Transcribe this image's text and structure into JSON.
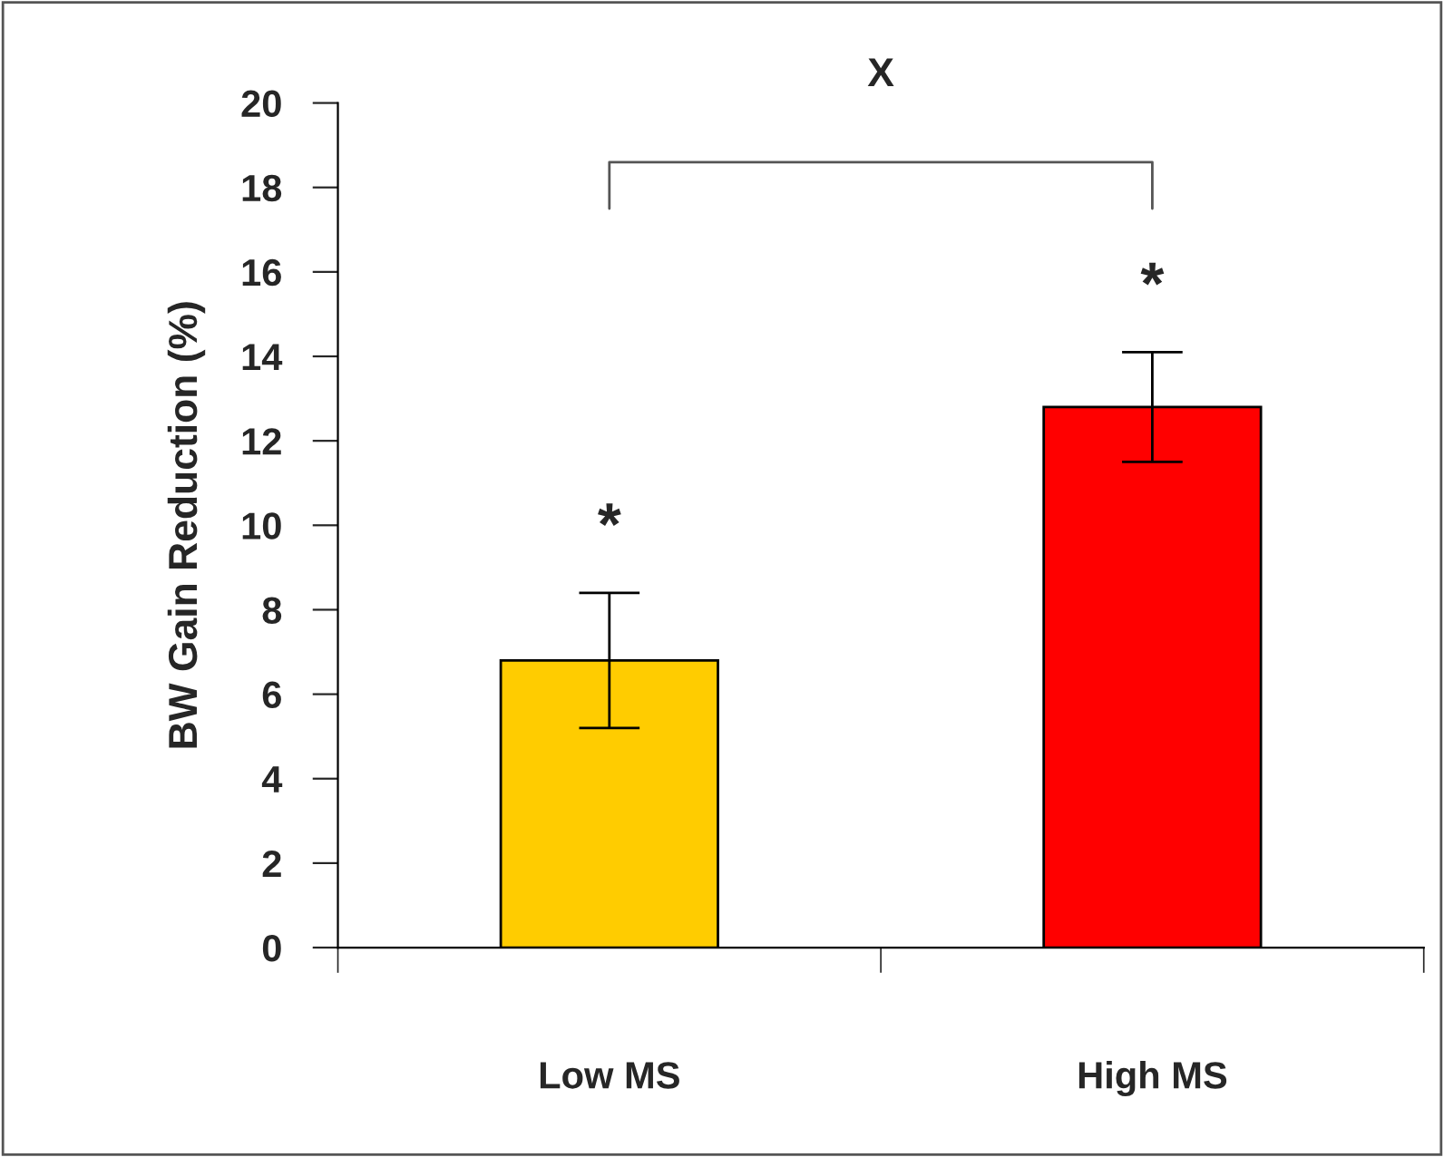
{
  "chart_data": {
    "type": "bar",
    "ylabel": "BW Gain Reduction (%)",
    "categories": [
      "Low MS",
      "High MS"
    ],
    "values": [
      6.8,
      12.8
    ],
    "errors": [
      1.6,
      1.3
    ],
    "colors": [
      "#ffcc00",
      "#ff0000"
    ],
    "ylim": [
      0,
      20
    ],
    "yticks": [
      0,
      2,
      4,
      6,
      8,
      10,
      12,
      14,
      16,
      18,
      20
    ],
    "grid": false,
    "annotations": [
      "*",
      "*",
      "X"
    ]
  }
}
